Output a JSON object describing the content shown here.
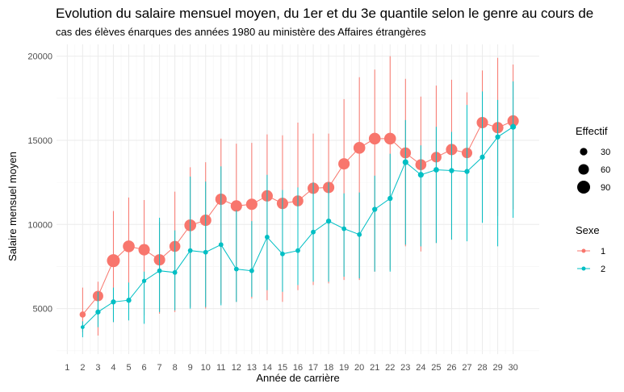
{
  "chart_data": {
    "type": "scatter",
    "title": "Evolution du salaire mensuel moyen, du 1er et du 3e quantile selon le genre au cours de",
    "subtitle": "cas des élèves énarques des années 1980 au ministère des Affaires étrangères",
    "xlabel": "Année de carrière",
    "ylabel": "Salaire mensuel moyen",
    "xlim": [
      0.3,
      31.7
    ],
    "ylim": [
      2300,
      20700
    ],
    "x_ticks": [
      1,
      2,
      3,
      4,
      5,
      6,
      7,
      8,
      9,
      10,
      11,
      12,
      13,
      14,
      15,
      16,
      17,
      18,
      19,
      20,
      21,
      22,
      23,
      24,
      25,
      26,
      27,
      28,
      29,
      30
    ],
    "y_ticks": [
      5000,
      10000,
      15000,
      20000
    ],
    "grid": true,
    "legend": {
      "placement": "right",
      "size_title": "Effectif",
      "size_entries": [
        {
          "label": "30",
          "value": 30
        },
        {
          "label": "60",
          "value": 60
        },
        {
          "label": "90",
          "value": 90
        }
      ],
      "color_title": "Sexe"
    },
    "series": [
      {
        "name": "1",
        "color": "#f8766d",
        "x": [
          2,
          3,
          4,
          5,
          6,
          7,
          8,
          9,
          10,
          11,
          12,
          13,
          14,
          15,
          16,
          17,
          18,
          19,
          20,
          21,
          22,
          23,
          24,
          25,
          26,
          27,
          28,
          29,
          30
        ],
        "y": [
          4650,
          5750,
          7850,
          8700,
          8500,
          7900,
          8700,
          9950,
          10250,
          11500,
          11100,
          11200,
          11700,
          11250,
          11400,
          12150,
          12200,
          13600,
          14550,
          15100,
          15100,
          14250,
          13550,
          14000,
          14450,
          14250,
          16050,
          15750,
          16150
        ],
        "q1": [
          3600,
          3400,
          4200,
          4400,
          4600,
          4700,
          4800,
          5100,
          5000,
          5300,
          5400,
          5600,
          5500,
          5400,
          6100,
          6400,
          6500,
          6700,
          6700,
          7200,
          7300,
          8700,
          8400,
          8900,
          9100,
          9400,
          10300,
          10500,
          10900
        ],
        "q3": [
          6250,
          6600,
          10800,
          11600,
          11450,
          10150,
          11950,
          13400,
          13700,
          15100,
          14800,
          14850,
          15350,
          15300,
          16050,
          15400,
          15400,
          17450,
          18750,
          19200,
          20000,
          18650,
          17600,
          18250,
          18600,
          17850,
          19150,
          19900,
          19500
        ],
        "n": [
          20,
          60,
          90,
          75,
          70,
          70,
          65,
          75,
          70,
          70,
          70,
          70,
          70,
          70,
          65,
          70,
          70,
          70,
          75,
          75,
          75,
          65,
          65,
          60,
          70,
          60,
          70,
          70,
          70
        ]
      },
      {
        "name": "2",
        "color": "#00bfc4",
        "x": [
          2,
          3,
          4,
          5,
          6,
          7,
          8,
          9,
          10,
          11,
          12,
          13,
          14,
          15,
          16,
          17,
          18,
          19,
          20,
          21,
          22,
          23,
          24,
          25,
          26,
          27,
          28,
          29,
          30
        ],
        "y": [
          3900,
          4800,
          5400,
          5500,
          6650,
          7250,
          7150,
          8450,
          8350,
          8800,
          7350,
          7250,
          9250,
          8250,
          8450,
          9550,
          10200,
          9750,
          9400,
          10900,
          11550,
          13700,
          12950,
          13250,
          13200,
          13150,
          14000,
          15200,
          15800
        ],
        "q1": [
          3300,
          3900,
          4200,
          4300,
          4100,
          4800,
          4900,
          5000,
          5100,
          5200,
          5400,
          5700,
          6100,
          6000,
          6400,
          6600,
          6600,
          6900,
          6800,
          7200,
          7200,
          8800,
          8700,
          8900,
          9100,
          9000,
          10100,
          8700,
          10400
        ],
        "q3": [
          4250,
          6000,
          6250,
          6550,
          7200,
          10400,
          9650,
          12850,
          12550,
          13450,
          10850,
          10200,
          12950,
          12050,
          12200,
          12500,
          12500,
          11850,
          11900,
          12900,
          14200,
          16200,
          14700,
          15800,
          15500,
          17100,
          17900,
          17400,
          18500
        ],
        "n": [
          8,
          14,
          14,
          14,
          10,
          12,
          12,
          12,
          12,
          12,
          12,
          12,
          12,
          12,
          12,
          12,
          14,
          12,
          12,
          14,
          14,
          18,
          18,
          16,
          14,
          14,
          14,
          14,
          18
        ]
      }
    ]
  }
}
